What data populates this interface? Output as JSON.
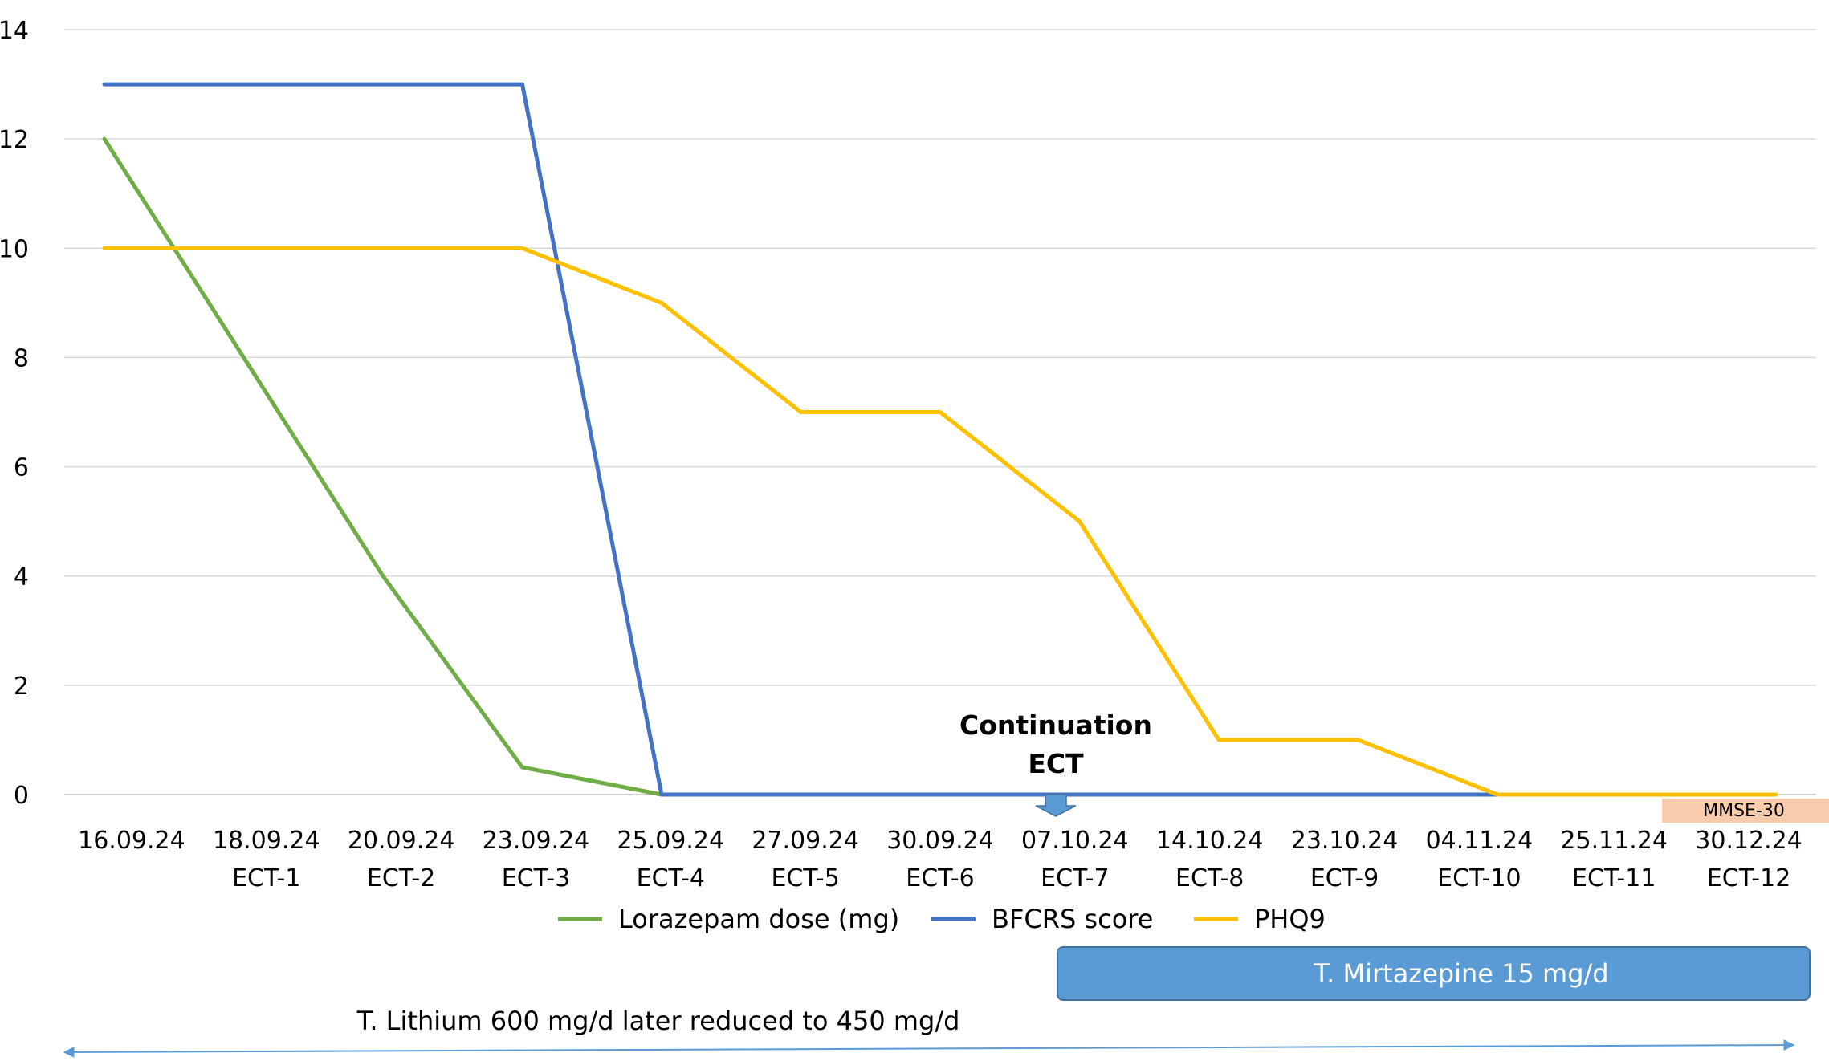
{
  "chart_data": {
    "type": "line",
    "categories": [
      [
        "16.09.24",
        ""
      ],
      [
        "18.09.24",
        "ECT-1"
      ],
      [
        "20.09.24",
        "ECT-2"
      ],
      [
        "23.09.24",
        "ECT-3"
      ],
      [
        "25.09.24",
        "ECT-4"
      ],
      [
        "27.09.24",
        "ECT-5"
      ],
      [
        "30.09.24",
        "ECT-6"
      ],
      [
        "07.10.24",
        "ECT-7"
      ],
      [
        "14.10.24",
        "ECT-8"
      ],
      [
        "23.10.24",
        "ECT-9"
      ],
      [
        "04.11.24",
        "ECT-10"
      ],
      [
        "25.11.24",
        "ECT-11"
      ],
      [
        "30.12.24",
        "ECT-12"
      ]
    ],
    "series": [
      {
        "name": "Lorazepam dose (mg)",
        "color": "#70AD47",
        "values": [
          12,
          8,
          4,
          0.5,
          0,
          null,
          null,
          null,
          null,
          null,
          null,
          null,
          null
        ]
      },
      {
        "name": "BFCRS score",
        "color": "#4472C4",
        "values": [
          13,
          13,
          13,
          13,
          0,
          0,
          0,
          0,
          0,
          0,
          0,
          null,
          null
        ]
      },
      {
        "name": "PHQ9",
        "color": "#FFC000",
        "values": [
          10,
          10,
          10,
          10,
          9,
          7,
          7,
          5,
          1,
          1,
          0,
          0,
          0
        ]
      }
    ],
    "ylim": [
      0,
      14
    ],
    "yticks": [
      0,
      2,
      4,
      6,
      8,
      10,
      12,
      14
    ],
    "grid": true,
    "legend": "bottom",
    "annotations": {
      "continuation": [
        "Continuation",
        "ECT"
      ],
      "mmse": "MMSE-30",
      "mirtazapine": "T. Mirtazepine 15 mg/d",
      "lithium": "T. Lithium 600 mg/d later reduced to 450 mg/d"
    }
  }
}
